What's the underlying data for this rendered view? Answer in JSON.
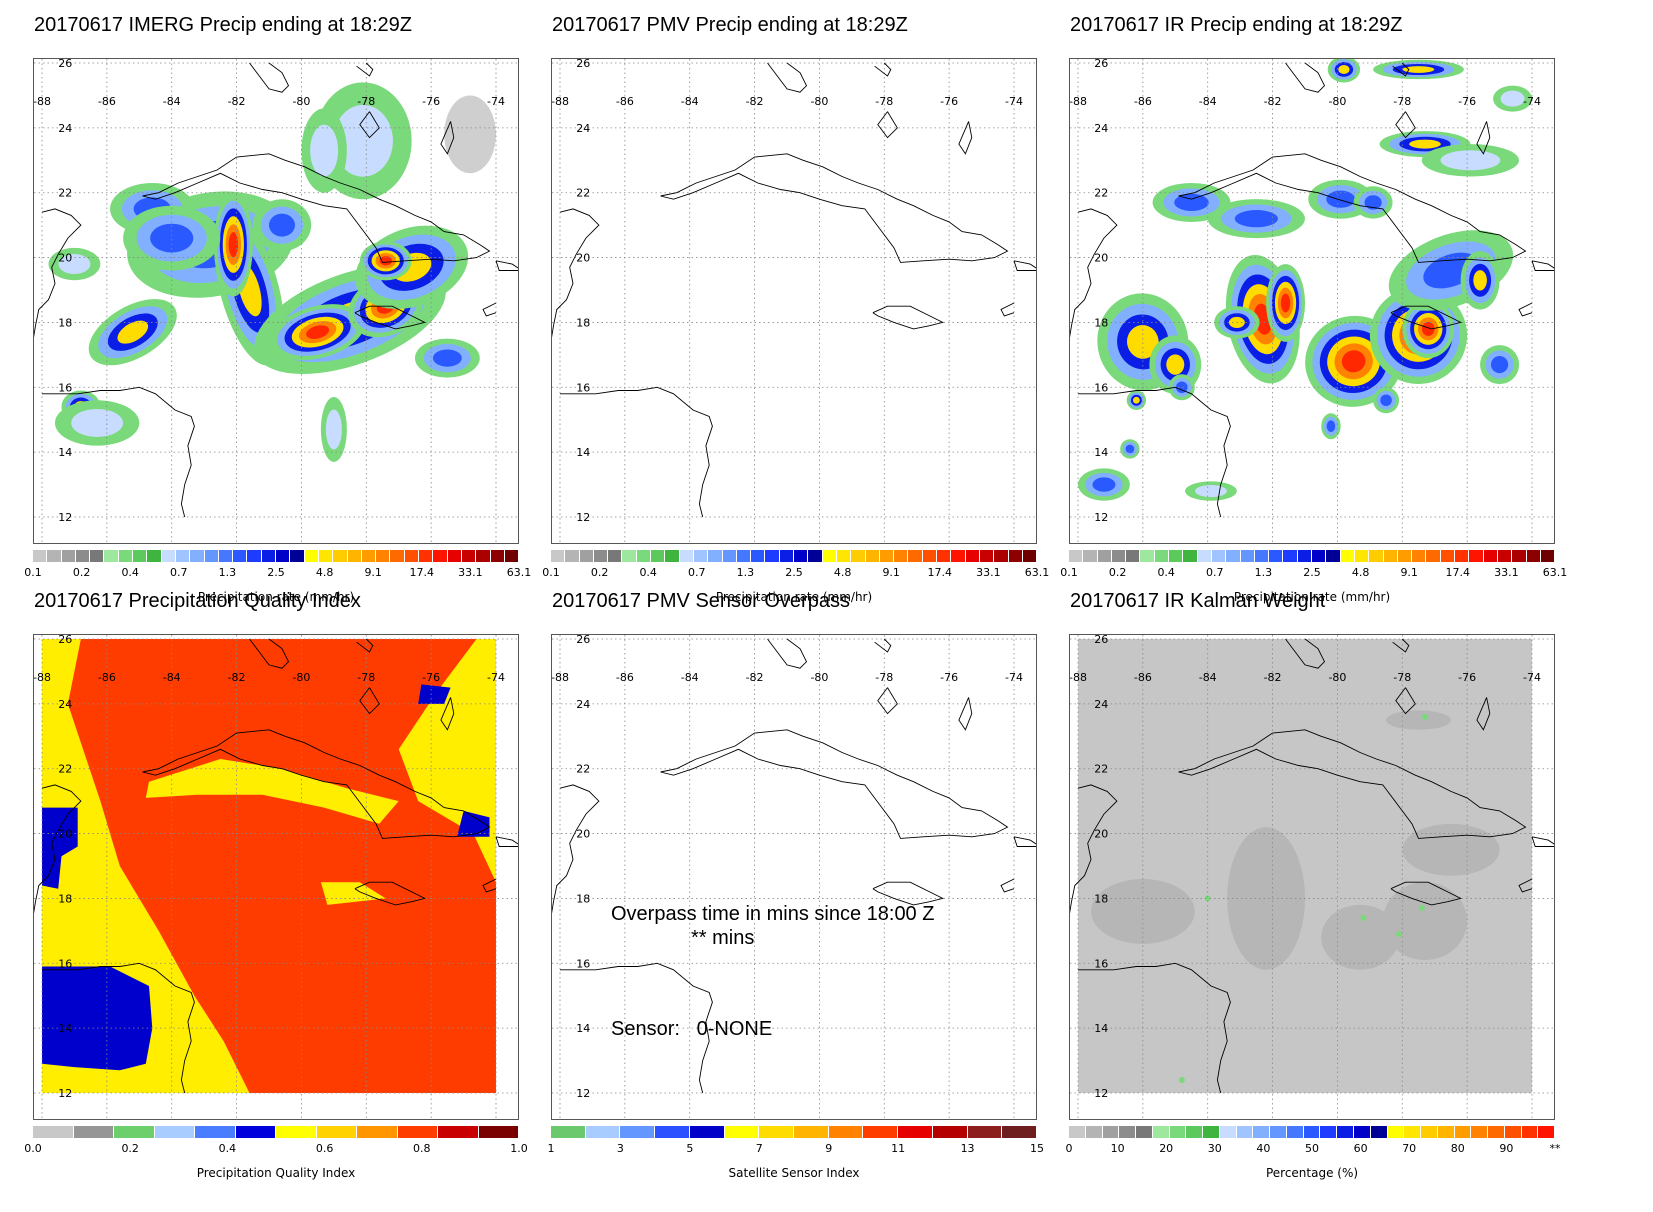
{
  "panels": [
    {
      "id": "imerg",
      "title": "20170617 IMERG Precip ending at 18:29Z",
      "field": "imerg",
      "colorbar": {
        "label": "Precipitation rate (mm/hr)",
        "ticks": [
          "0.1",
          "0.2",
          "0.4",
          "0.7",
          "1.3",
          "2.5",
          "4.8",
          "9.1",
          "17.4",
          "33.1",
          "63.1"
        ],
        "colors": [
          "#c8c8c8",
          "#b4b4b4",
          "#a0a0a0",
          "#8c8c8c",
          "#787878",
          "#9ee79e",
          "#7ad97a",
          "#5cc95c",
          "#3fb53f",
          "#c8dcff",
          "#a0c4ff",
          "#82b0ff",
          "#6496ff",
          "#4678ff",
          "#2a5aff",
          "#1e3cff",
          "#0a1ee6",
          "#0000c8",
          "#000096",
          "#ffff00",
          "#ffe600",
          "#ffcc00",
          "#ffb400",
          "#ff9c00",
          "#ff8200",
          "#ff6a00",
          "#ff5000",
          "#ff3200",
          "#ff1400",
          "#e60000",
          "#c80000",
          "#aa0000",
          "#8c0000",
          "#6e0000"
        ]
      }
    },
    {
      "id": "pmv",
      "title": "20170617 PMV Precip ending at 18:29Z",
      "field": "none",
      "colorbar": {
        "label": "Precipitation rate (mm/hr)",
        "ticks": [
          "0.1",
          "0.2",
          "0.4",
          "0.7",
          "1.3",
          "2.5",
          "4.8",
          "9.1",
          "17.4",
          "33.1",
          "63.1"
        ],
        "colors": [
          "#c8c8c8",
          "#b4b4b4",
          "#a0a0a0",
          "#8c8c8c",
          "#787878",
          "#9ee79e",
          "#7ad97a",
          "#5cc95c",
          "#3fb53f",
          "#c8dcff",
          "#a0c4ff",
          "#82b0ff",
          "#6496ff",
          "#4678ff",
          "#2a5aff",
          "#1e3cff",
          "#0a1ee6",
          "#0000c8",
          "#000096",
          "#ffff00",
          "#ffe600",
          "#ffcc00",
          "#ffb400",
          "#ff9c00",
          "#ff8200",
          "#ff6a00",
          "#ff5000",
          "#ff3200",
          "#ff1400",
          "#e60000",
          "#c80000",
          "#aa0000",
          "#8c0000",
          "#6e0000"
        ]
      }
    },
    {
      "id": "ir",
      "title": "20170617 IR Precip ending at 18:29Z",
      "field": "ir",
      "colorbar": {
        "label": "Precipitation rate (mm/hr)",
        "ticks": [
          "0.1",
          "0.2",
          "0.4",
          "0.7",
          "1.3",
          "2.5",
          "4.8",
          "9.1",
          "17.4",
          "33.1",
          "63.1"
        ],
        "colors": [
          "#c8c8c8",
          "#b4b4b4",
          "#a0a0a0",
          "#8c8c8c",
          "#787878",
          "#9ee79e",
          "#7ad97a",
          "#5cc95c",
          "#3fb53f",
          "#c8dcff",
          "#a0c4ff",
          "#82b0ff",
          "#6496ff",
          "#4678ff",
          "#2a5aff",
          "#1e3cff",
          "#0a1ee6",
          "#0000c8",
          "#000096",
          "#ffff00",
          "#ffe600",
          "#ffcc00",
          "#ffb400",
          "#ff9c00",
          "#ff8200",
          "#ff6a00",
          "#ff5000",
          "#ff3200",
          "#ff1400",
          "#e60000",
          "#c80000",
          "#aa0000",
          "#8c0000",
          "#6e0000"
        ]
      }
    },
    {
      "id": "pqi",
      "title": "20170617 Precipitation Quality Index",
      "field": "pqi",
      "colorbar": {
        "label": "Precipitation Quality Index",
        "ticks": [
          "0.0",
          "0.2",
          "0.4",
          "0.6",
          "0.8",
          "1.0"
        ],
        "colors": [
          "#c8c8c8",
          "#969696",
          "#6ccf6c",
          "#a8ccff",
          "#4a7cff",
          "#0000dc",
          "#ffff00",
          "#ffd200",
          "#ff9600",
          "#ff3c00",
          "#c80000",
          "#7a0000"
        ]
      }
    },
    {
      "id": "sensor",
      "title": "20170617 PMV Sensor Overpass",
      "field": "none",
      "annotation_overpass": "Overpass time in mins since 18:00 Z",
      "annotation_mins": "** mins",
      "annotation_sensor": "Sensor:   0-NONE",
      "colorbar": {
        "label": "Satellite Sensor Index",
        "ticks": [
          "1",
          "3",
          "5",
          "7",
          "9",
          "11",
          "13",
          "15"
        ],
        "colors": [
          "#6cc86c",
          "#a8ccff",
          "#6496ff",
          "#2a50ff",
          "#0000c8",
          "#ffff00",
          "#ffdc00",
          "#ffb400",
          "#ff8200",
          "#ff3c00",
          "#e60000",
          "#b40000",
          "#8c1e1e",
          "#6e1e1e"
        ]
      }
    },
    {
      "id": "kalman",
      "title": "20170617 IR Kalman Weight",
      "field": "kalman",
      "colorbar": {
        "label": "Percentage (%)",
        "ticks": [
          "0",
          "10",
          "20",
          "30",
          "40",
          "50",
          "60",
          "70",
          "80",
          "90",
          "**"
        ],
        "colors": [
          "#c8c8c8",
          "#b4b4b4",
          "#a0a0a0",
          "#8c8c8c",
          "#787878",
          "#9ee79e",
          "#7ad97a",
          "#5cc95c",
          "#3fb53f",
          "#c8dcff",
          "#a0c4ff",
          "#82b0ff",
          "#6496ff",
          "#4678ff",
          "#2a5aff",
          "#1e3cff",
          "#0a1ee6",
          "#0000c8",
          "#000096",
          "#ffff00",
          "#ffe600",
          "#ffcc00",
          "#ffb400",
          "#ff9c00",
          "#ff8200",
          "#ff6a00",
          "#ff5000",
          "#ff3200",
          "#ff1400"
        ]
      }
    }
  ],
  "map": {
    "lon_labels": [
      "-88",
      "-86",
      "-84",
      "-82",
      "-80",
      "-78",
      "-76",
      "-74"
    ],
    "lat_labels": [
      "26",
      "24",
      "22",
      "20",
      "18",
      "16",
      "14",
      "12"
    ]
  }
}
